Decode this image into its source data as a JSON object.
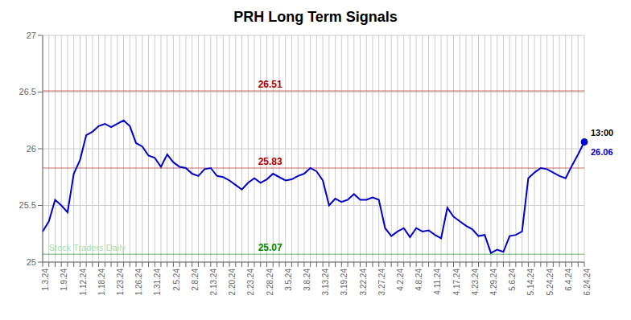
{
  "chart_data": {
    "type": "line",
    "title": "PRH Long Term Signals",
    "categories": [
      "1.3.24",
      null,
      null,
      "1.9.24",
      null,
      null,
      "1.12.24",
      null,
      null,
      "1.18.24",
      null,
      null,
      "1.23.24",
      null,
      null,
      "1.26.24",
      null,
      null,
      "1.31.24",
      null,
      null,
      "2.5.24",
      null,
      null,
      "2.8.24",
      null,
      null,
      "2.13.24",
      null,
      null,
      "2.20.24",
      null,
      null,
      "2.23.24",
      null,
      null,
      "2.28.24",
      null,
      null,
      "3.5.24",
      null,
      null,
      "3.8.24",
      null,
      null,
      "3.13.24",
      null,
      null,
      "3.19.24",
      null,
      null,
      "3.22.24",
      null,
      null,
      "3.27.24",
      null,
      null,
      "4.2.24",
      null,
      null,
      "4.8.24",
      null,
      null,
      "4.11.24",
      null,
      null,
      "4.17.24",
      null,
      null,
      "4.23.24",
      null,
      null,
      "4.29.24",
      null,
      null,
      "5.6.24",
      null,
      null,
      "5.14.24",
      null,
      null,
      "5.24.24",
      null,
      null,
      "6.4.24",
      null,
      null,
      "6.24.24"
    ],
    "values": [
      25.27,
      25.36,
      25.55,
      25.5,
      25.44,
      25.78,
      25.9,
      26.12,
      26.15,
      26.2,
      26.22,
      26.19,
      26.22,
      26.25,
      26.2,
      26.05,
      26.02,
      25.94,
      25.92,
      25.84,
      25.95,
      25.88,
      25.84,
      25.83,
      25.78,
      25.76,
      25.82,
      25.83,
      25.76,
      25.75,
      25.72,
      25.68,
      25.64,
      25.7,
      25.74,
      25.7,
      25.73,
      25.78,
      25.75,
      25.72,
      25.73,
      25.76,
      25.78,
      25.83,
      25.8,
      25.72,
      25.5,
      25.56,
      25.53,
      25.55,
      25.6,
      25.55,
      25.55,
      25.57,
      25.55,
      25.3,
      25.23,
      25.27,
      25.3,
      25.22,
      25.3,
      25.27,
      25.28,
      25.24,
      25.21,
      25.48,
      25.4,
      25.36,
      25.32,
      25.29,
      25.23,
      25.24,
      25.08,
      25.11,
      25.09,
      25.23,
      25.24,
      25.27,
      25.74,
      25.79,
      25.83,
      25.82,
      25.79,
      25.76,
      25.74,
      25.85,
      25.95,
      26.06
    ],
    "color": "#0000cc",
    "ylim": [
      25.0,
      27.0
    ],
    "yticks": [
      25,
      25.5,
      26,
      26.5,
      27
    ],
    "grid": true,
    "reference_lines": [
      {
        "value": 26.51,
        "color": "#aa0000"
      },
      {
        "value": 25.83,
        "color": "#aa0000"
      },
      {
        "value": 25.07,
        "color": "#008800"
      }
    ],
    "last_point": {
      "x": 87,
      "y": 26.06,
      "label": "13:00",
      "color": "#0000cc"
    },
    "annotations": [
      {
        "text": "Stock Traders Daily",
        "x": 1,
        "y": 25.07,
        "color": "#aaddaa"
      }
    ]
  }
}
